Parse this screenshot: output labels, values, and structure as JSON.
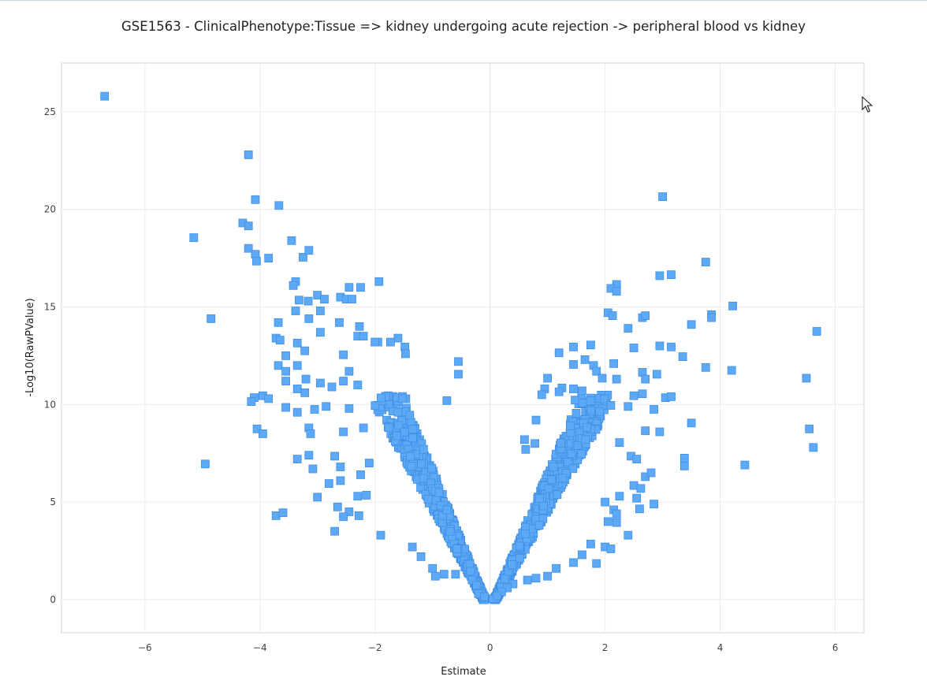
{
  "chart_data": {
    "type": "scatter",
    "title": "GSE1563 - ClinicalPhenotype:Tissue => kidney undergoing acute rejection -> peripheral blood vs kidney",
    "xlabel": "Estimate",
    "ylabel": "-Log10(RawPValue)",
    "xlim": [
      -7.45,
      6.5
    ],
    "ylim": [
      -1.7,
      27.5
    ],
    "xticks": [
      -6,
      -4,
      -2,
      0,
      2,
      4,
      6
    ],
    "yticks": [
      0,
      5,
      10,
      15,
      20,
      25
    ],
    "grid": true,
    "marker": "square",
    "marker_color": "#5ea9f6",
    "marker_edge_color": "#3f8fe6",
    "points": [
      [
        -6.7,
        25.8
      ],
      [
        -4.2,
        22.8
      ],
      [
        -4.08,
        20.5
      ],
      [
        -3.67,
        20.2
      ],
      [
        -5.15,
        18.55
      ],
      [
        -4.3,
        19.3
      ],
      [
        -4.2,
        19.15
      ],
      [
        -3.45,
        18.4
      ],
      [
        -4.2,
        18.0
      ],
      [
        -4.08,
        17.7
      ],
      [
        -4.06,
        17.35
      ],
      [
        -3.85,
        17.5
      ],
      [
        -3.25,
        17.55
      ],
      [
        -3.15,
        17.9
      ],
      [
        -4.85,
        14.4
      ],
      [
        -3.38,
        16.3
      ],
      [
        -3.42,
        16.1
      ],
      [
        -2.45,
        16.0
      ],
      [
        -2.25,
        16.0
      ],
      [
        -1.93,
        16.3
      ],
      [
        -3.32,
        15.35
      ],
      [
        -3.0,
        15.6
      ],
      [
        -3.16,
        15.3
      ],
      [
        -2.88,
        15.4
      ],
      [
        -2.6,
        15.5
      ],
      [
        -2.5,
        15.4
      ],
      [
        -2.4,
        15.4
      ],
      [
        -3.38,
        14.8
      ],
      [
        -2.95,
        14.8
      ],
      [
        -3.68,
        14.2
      ],
      [
        -3.15,
        14.4
      ],
      [
        -2.62,
        14.2
      ],
      [
        -2.27,
        14.0
      ],
      [
        -2.95,
        13.7
      ],
      [
        -3.72,
        13.4
      ],
      [
        -3.65,
        13.3
      ],
      [
        -3.35,
        13.15
      ],
      [
        -2.3,
        13.5
      ],
      [
        -2.2,
        13.5
      ],
      [
        -1.6,
        13.4
      ],
      [
        -1.73,
        13.2
      ],
      [
        -1.95,
        13.2
      ],
      [
        -2.0,
        13.2
      ],
      [
        -3.55,
        12.5
      ],
      [
        -3.22,
        12.75
      ],
      [
        -2.55,
        12.55
      ],
      [
        -1.48,
        12.95
      ],
      [
        -1.47,
        12.6
      ],
      [
        -0.55,
        12.2
      ],
      [
        -3.68,
        12.0
      ],
      [
        -3.35,
        12.0
      ],
      [
        -3.55,
        11.7
      ],
      [
        -2.45,
        11.7
      ],
      [
        -0.55,
        11.55
      ],
      [
        -3.55,
        11.2
      ],
      [
        -3.2,
        11.3
      ],
      [
        -2.95,
        11.1
      ],
      [
        -2.55,
        11.2
      ],
      [
        -2.3,
        11.0
      ],
      [
        -3.35,
        10.8
      ],
      [
        -3.22,
        10.6
      ],
      [
        -2.75,
        10.9
      ],
      [
        -4.1,
        10.35
      ],
      [
        -3.95,
        10.45
      ],
      [
        -3.85,
        10.3
      ],
      [
        -4.15,
        10.15
      ],
      [
        -3.55,
        9.85
      ],
      [
        -3.35,
        9.6
      ],
      [
        -3.05,
        9.75
      ],
      [
        -2.85,
        9.9
      ],
      [
        -2.45,
        9.8
      ],
      [
        -1.6,
        9.6
      ],
      [
        -0.75,
        10.2
      ],
      [
        -4.05,
        8.75
      ],
      [
        -3.95,
        8.5
      ],
      [
        -3.15,
        8.8
      ],
      [
        -3.12,
        8.5
      ],
      [
        -2.55,
        8.6
      ],
      [
        -2.2,
        8.8
      ],
      [
        -4.95,
        6.95
      ],
      [
        -3.35,
        7.2
      ],
      [
        -3.15,
        7.4
      ],
      [
        -2.7,
        7.35
      ],
      [
        -2.1,
        7.0
      ],
      [
        -3.08,
        6.7
      ],
      [
        -2.6,
        6.8
      ],
      [
        -2.25,
        6.4
      ],
      [
        -2.8,
        5.95
      ],
      [
        -2.6,
        6.1
      ],
      [
        -3.0,
        5.25
      ],
      [
        -2.3,
        5.3
      ],
      [
        -2.15,
        5.35
      ],
      [
        -2.65,
        4.75
      ],
      [
        -2.45,
        4.5
      ],
      [
        -2.55,
        4.25
      ],
      [
        -2.28,
        4.3
      ],
      [
        -3.72,
        4.3
      ],
      [
        -3.6,
        4.45
      ],
      [
        -2.7,
        3.5
      ],
      [
        -1.9,
        3.3
      ],
      [
        -1.35,
        2.7
      ],
      [
        -1.2,
        2.2
      ],
      [
        -1.0,
        1.6
      ],
      [
        -0.95,
        1.2
      ],
      [
        -0.8,
        1.3
      ],
      [
        -0.6,
        1.3
      ],
      [
        3.0,
        20.65
      ],
      [
        3.75,
        17.3
      ],
      [
        2.95,
        16.6
      ],
      [
        3.15,
        16.65
      ],
      [
        2.2,
        16.15
      ],
      [
        2.1,
        15.95
      ],
      [
        2.2,
        15.8
      ],
      [
        4.22,
        15.05
      ],
      [
        2.05,
        14.7
      ],
      [
        2.13,
        14.55
      ],
      [
        2.65,
        14.45
      ],
      [
        2.7,
        14.55
      ],
      [
        3.85,
        14.6
      ],
      [
        3.85,
        14.45
      ],
      [
        3.5,
        14.1
      ],
      [
        2.4,
        13.9
      ],
      [
        1.75,
        13.05
      ],
      [
        1.45,
        12.95
      ],
      [
        2.95,
        13.0
      ],
      [
        3.15,
        12.95
      ],
      [
        2.5,
        12.9
      ],
      [
        1.2,
        12.65
      ],
      [
        3.35,
        12.45
      ],
      [
        1.45,
        12.05
      ],
      [
        1.65,
        12.3
      ],
      [
        1.8,
        12.0
      ],
      [
        2.15,
        12.1
      ],
      [
        3.75,
        11.9
      ],
      [
        4.2,
        11.75
      ],
      [
        1.85,
        11.7
      ],
      [
        2.65,
        11.65
      ],
      [
        2.9,
        11.55
      ],
      [
        1.95,
        11.35
      ],
      [
        2.2,
        11.3
      ],
      [
        2.7,
        11.3
      ],
      [
        1.0,
        11.35
      ],
      [
        5.5,
        11.35
      ],
      [
        5.68,
        13.75
      ],
      [
        1.25,
        10.85
      ],
      [
        1.45,
        10.8
      ],
      [
        1.6,
        10.7
      ],
      [
        0.95,
        10.8
      ],
      [
        0.9,
        10.5
      ],
      [
        1.2,
        10.65
      ],
      [
        2.65,
        10.55
      ],
      [
        2.5,
        10.45
      ],
      [
        2.1,
        9.95
      ],
      [
        2.4,
        9.9
      ],
      [
        2.85,
        9.75
      ],
      [
        3.05,
        10.35
      ],
      [
        3.15,
        10.4
      ],
      [
        3.5,
        9.05
      ],
      [
        0.8,
        9.2
      ],
      [
        0.6,
        8.2
      ],
      [
        0.62,
        7.7
      ],
      [
        0.78,
        8.0
      ],
      [
        2.25,
        8.05
      ],
      [
        2.7,
        8.65
      ],
      [
        2.45,
        7.35
      ],
      [
        2.95,
        8.6
      ],
      [
        2.55,
        7.2
      ],
      [
        3.38,
        7.25
      ],
      [
        3.38,
        6.85
      ],
      [
        4.43,
        6.9
      ],
      [
        5.55,
        8.75
      ],
      [
        5.62,
        7.8
      ],
      [
        2.7,
        6.3
      ],
      [
        2.8,
        6.5
      ],
      [
        2.5,
        5.85
      ],
      [
        2.62,
        5.7
      ],
      [
        2.25,
        5.3
      ],
      [
        2.0,
        5.0
      ],
      [
        2.15,
        4.6
      ],
      [
        2.2,
        4.4
      ],
      [
        2.55,
        5.2
      ],
      [
        2.6,
        4.65
      ],
      [
        2.85,
        4.9
      ],
      [
        2.05,
        4.0
      ],
      [
        2.2,
        3.95
      ],
      [
        2.4,
        3.3
      ],
      [
        1.75,
        2.85
      ],
      [
        2.0,
        2.7
      ],
      [
        2.1,
        2.6
      ],
      [
        1.6,
        2.3
      ],
      [
        1.45,
        1.9
      ],
      [
        1.85,
        1.85
      ],
      [
        1.15,
        1.6
      ],
      [
        1.0,
        1.2
      ],
      [
        0.8,
        1.1
      ],
      [
        0.65,
        1.0
      ],
      [
        0.4,
        0.8
      ],
      [
        0.3,
        0.6
      ],
      [
        0.2,
        0.4
      ],
      [
        -0.2,
        0.3
      ],
      [
        -0.1,
        0.15
      ],
      [
        0.05,
        0.05
      ],
      [
        0.12,
        0.2
      ]
    ]
  }
}
